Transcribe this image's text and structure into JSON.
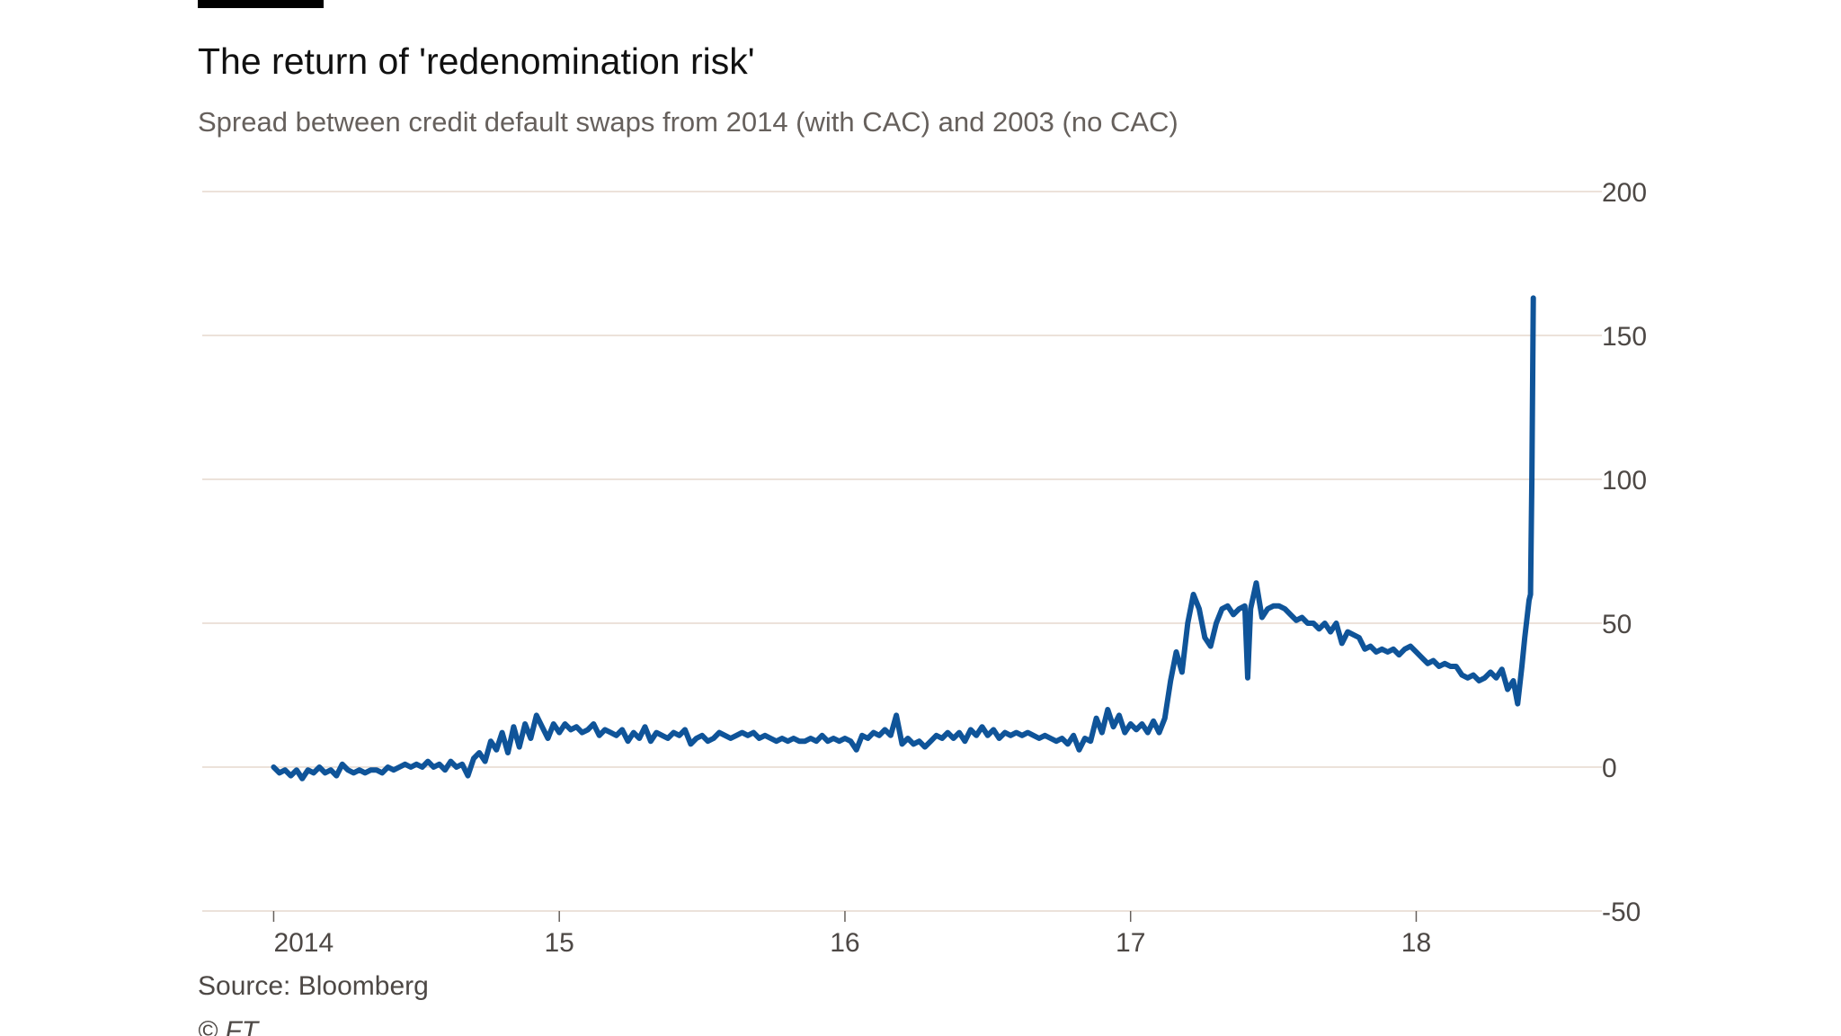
{
  "chart_data": {
    "type": "line",
    "title": "The return of 'redenomination risk'",
    "subtitle": "Spread between credit default swaps from 2014 (with CAC) and 2003 (no CAC)",
    "xlabel": "",
    "ylabel": "",
    "source": "Source: Bloomberg",
    "credit": "© FT",
    "x_ticks": [
      {
        "value": 2014.0,
        "label": "2014"
      },
      {
        "value": 2015.0,
        "label": "15"
      },
      {
        "value": 2016.0,
        "label": "16"
      },
      {
        "value": 2017.0,
        "label": "17"
      },
      {
        "value": 2018.0,
        "label": "18"
      }
    ],
    "y_ticks": [
      {
        "value": 200,
        "label": "200"
      },
      {
        "value": 150,
        "label": "150"
      },
      {
        "value": 100,
        "label": "100"
      },
      {
        "value": 50,
        "label": "50"
      },
      {
        "value": 0,
        "label": "0"
      },
      {
        "value": -50,
        "label": "-50"
      }
    ],
    "xlim": [
      2013.75,
      2018.65
    ],
    "ylim": [
      -50,
      200
    ],
    "grid": true,
    "y_axis_side": "right",
    "colors": {
      "line": "#0f5499",
      "grid": "#e6d9ce",
      "accent_bar": "#000000"
    },
    "series": [
      {
        "values": [
          [
            2014.0,
            0
          ],
          [
            2014.02,
            -2
          ],
          [
            2014.04,
            -1
          ],
          [
            2014.06,
            -3
          ],
          [
            2014.08,
            -1
          ],
          [
            2014.1,
            -4
          ],
          [
            2014.12,
            -1
          ],
          [
            2014.14,
            -2
          ],
          [
            2014.16,
            0
          ],
          [
            2014.18,
            -2
          ],
          [
            2014.2,
            -1
          ],
          [
            2014.22,
            -3
          ],
          [
            2014.24,
            1
          ],
          [
            2014.26,
            -1
          ],
          [
            2014.28,
            -2
          ],
          [
            2014.3,
            -1
          ],
          [
            2014.32,
            -2
          ],
          [
            2014.34,
            -1
          ],
          [
            2014.36,
            -1
          ],
          [
            2014.38,
            -2
          ],
          [
            2014.4,
            0
          ],
          [
            2014.42,
            -1
          ],
          [
            2014.44,
            0
          ],
          [
            2014.46,
            1
          ],
          [
            2014.48,
            0
          ],
          [
            2014.5,
            1
          ],
          [
            2014.52,
            0
          ],
          [
            2014.54,
            2
          ],
          [
            2014.56,
            0
          ],
          [
            2014.58,
            1
          ],
          [
            2014.6,
            -1
          ],
          [
            2014.62,
            2
          ],
          [
            2014.64,
            0
          ],
          [
            2014.66,
            1
          ],
          [
            2014.68,
            -3
          ],
          [
            2014.7,
            3
          ],
          [
            2014.72,
            5
          ],
          [
            2014.74,
            2
          ],
          [
            2014.76,
            9
          ],
          [
            2014.78,
            6
          ],
          [
            2014.8,
            12
          ],
          [
            2014.82,
            5
          ],
          [
            2014.84,
            14
          ],
          [
            2014.86,
            7
          ],
          [
            2014.88,
            15
          ],
          [
            2014.9,
            10
          ],
          [
            2014.92,
            18
          ],
          [
            2014.94,
            14
          ],
          [
            2014.96,
            10
          ],
          [
            2014.98,
            15
          ],
          [
            2015.0,
            12
          ],
          [
            2015.02,
            15
          ],
          [
            2015.04,
            13
          ],
          [
            2015.06,
            14
          ],
          [
            2015.08,
            12
          ],
          [
            2015.1,
            13
          ],
          [
            2015.12,
            15
          ],
          [
            2015.14,
            11
          ],
          [
            2015.16,
            13
          ],
          [
            2015.18,
            12
          ],
          [
            2015.2,
            11
          ],
          [
            2015.22,
            13
          ],
          [
            2015.24,
            9
          ],
          [
            2015.26,
            12
          ],
          [
            2015.28,
            10
          ],
          [
            2015.3,
            14
          ],
          [
            2015.32,
            9
          ],
          [
            2015.34,
            12
          ],
          [
            2015.36,
            11
          ],
          [
            2015.38,
            10
          ],
          [
            2015.4,
            12
          ],
          [
            2015.42,
            11
          ],
          [
            2015.44,
            13
          ],
          [
            2015.46,
            8
          ],
          [
            2015.48,
            10
          ],
          [
            2015.5,
            11
          ],
          [
            2015.52,
            9
          ],
          [
            2015.54,
            10
          ],
          [
            2015.56,
            12
          ],
          [
            2015.58,
            11
          ],
          [
            2015.6,
            10
          ],
          [
            2015.62,
            11
          ],
          [
            2015.64,
            12
          ],
          [
            2015.66,
            11
          ],
          [
            2015.68,
            12
          ],
          [
            2015.7,
            10
          ],
          [
            2015.72,
            11
          ],
          [
            2015.74,
            10
          ],
          [
            2015.76,
            9
          ],
          [
            2015.78,
            10
          ],
          [
            2015.8,
            9
          ],
          [
            2015.82,
            10
          ],
          [
            2015.84,
            9
          ],
          [
            2015.86,
            9
          ],
          [
            2015.88,
            10
          ],
          [
            2015.9,
            9
          ],
          [
            2015.92,
            11
          ],
          [
            2015.94,
            9
          ],
          [
            2015.96,
            10
          ],
          [
            2015.98,
            9
          ],
          [
            2016.0,
            10
          ],
          [
            2016.02,
            9
          ],
          [
            2016.04,
            6
          ],
          [
            2016.06,
            11
          ],
          [
            2016.08,
            10
          ],
          [
            2016.1,
            12
          ],
          [
            2016.12,
            11
          ],
          [
            2016.14,
            13
          ],
          [
            2016.16,
            11
          ],
          [
            2016.18,
            18
          ],
          [
            2016.2,
            8
          ],
          [
            2016.22,
            10
          ],
          [
            2016.24,
            8
          ],
          [
            2016.26,
            9
          ],
          [
            2016.28,
            7
          ],
          [
            2016.3,
            9
          ],
          [
            2016.32,
            11
          ],
          [
            2016.34,
            10
          ],
          [
            2016.36,
            12
          ],
          [
            2016.38,
            10
          ],
          [
            2016.4,
            12
          ],
          [
            2016.42,
            9
          ],
          [
            2016.44,
            13
          ],
          [
            2016.46,
            11
          ],
          [
            2016.48,
            14
          ],
          [
            2016.5,
            11
          ],
          [
            2016.52,
            13
          ],
          [
            2016.54,
            10
          ],
          [
            2016.56,
            12
          ],
          [
            2016.58,
            11
          ],
          [
            2016.6,
            12
          ],
          [
            2016.62,
            11
          ],
          [
            2016.64,
            12
          ],
          [
            2016.66,
            11
          ],
          [
            2016.68,
            10
          ],
          [
            2016.7,
            11
          ],
          [
            2016.72,
            10
          ],
          [
            2016.74,
            9
          ],
          [
            2016.76,
            10
          ],
          [
            2016.78,
            8
          ],
          [
            2016.8,
            11
          ],
          [
            2016.82,
            6
          ],
          [
            2016.84,
            10
          ],
          [
            2016.86,
            9
          ],
          [
            2016.88,
            17
          ],
          [
            2016.9,
            12
          ],
          [
            2016.92,
            20
          ],
          [
            2016.94,
            14
          ],
          [
            2016.96,
            18
          ],
          [
            2016.98,
            12
          ],
          [
            2017.0,
            15
          ],
          [
            2017.02,
            13
          ],
          [
            2017.04,
            15
          ],
          [
            2017.06,
            12
          ],
          [
            2017.08,
            16
          ],
          [
            2017.1,
            12
          ],
          [
            2017.12,
            17
          ],
          [
            2017.14,
            30
          ],
          [
            2017.16,
            40
          ],
          [
            2017.18,
            33
          ],
          [
            2017.2,
            50
          ],
          [
            2017.22,
            60
          ],
          [
            2017.24,
            55
          ],
          [
            2017.26,
            45
          ],
          [
            2017.28,
            42
          ],
          [
            2017.3,
            50
          ],
          [
            2017.32,
            55
          ],
          [
            2017.34,
            56
          ],
          [
            2017.36,
            53
          ],
          [
            2017.38,
            55
          ],
          [
            2017.4,
            56
          ],
          [
            2017.41,
            31
          ],
          [
            2017.42,
            55
          ],
          [
            2017.44,
            64
          ],
          [
            2017.46,
            52
          ],
          [
            2017.48,
            55
          ],
          [
            2017.5,
            56
          ],
          [
            2017.52,
            56
          ],
          [
            2017.54,
            55
          ],
          [
            2017.56,
            53
          ],
          [
            2017.58,
            51
          ],
          [
            2017.6,
            52
          ],
          [
            2017.62,
            50
          ],
          [
            2017.64,
            50
          ],
          [
            2017.66,
            48
          ],
          [
            2017.68,
            50
          ],
          [
            2017.7,
            47
          ],
          [
            2017.72,
            50
          ],
          [
            2017.74,
            43
          ],
          [
            2017.76,
            47
          ],
          [
            2017.78,
            46
          ],
          [
            2017.8,
            45
          ],
          [
            2017.82,
            41
          ],
          [
            2017.84,
            42
          ],
          [
            2017.86,
            40
          ],
          [
            2017.88,
            41
          ],
          [
            2017.9,
            40
          ],
          [
            2017.92,
            41
          ],
          [
            2017.94,
            39
          ],
          [
            2017.96,
            41
          ],
          [
            2017.98,
            42
          ],
          [
            2018.0,
            40
          ],
          [
            2018.02,
            38
          ],
          [
            2018.04,
            36
          ],
          [
            2018.06,
            37
          ],
          [
            2018.08,
            35
          ],
          [
            2018.1,
            36
          ],
          [
            2018.12,
            35
          ],
          [
            2018.14,
            35
          ],
          [
            2018.16,
            32
          ],
          [
            2018.18,
            31
          ],
          [
            2018.2,
            32
          ],
          [
            2018.22,
            30
          ],
          [
            2018.24,
            31
          ],
          [
            2018.26,
            33
          ],
          [
            2018.28,
            31
          ],
          [
            2018.3,
            34
          ],
          [
            2018.32,
            27
          ],
          [
            2018.34,
            30
          ],
          [
            2018.355,
            22
          ],
          [
            2018.37,
            35
          ],
          [
            2018.38,
            45
          ],
          [
            2018.395,
            58
          ],
          [
            2018.4,
            60
          ],
          [
            2018.405,
            100
          ],
          [
            2018.41,
            163
          ]
        ]
      }
    ]
  }
}
